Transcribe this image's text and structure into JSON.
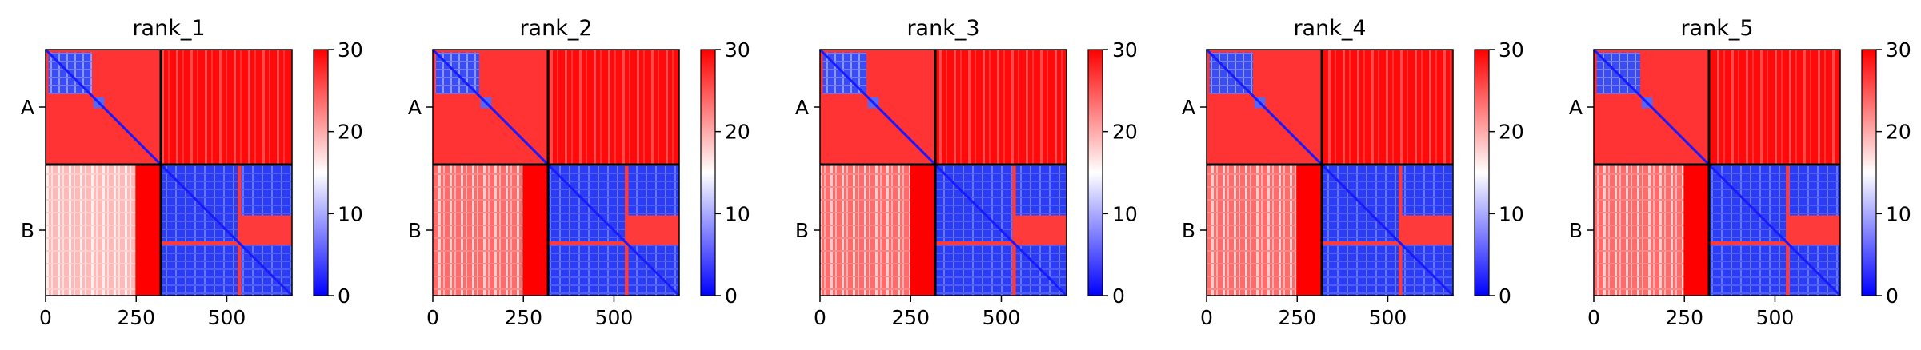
{
  "chart_data": {
    "type": "heatmap",
    "colormap": "bwr",
    "value_range": [
      0,
      30
    ],
    "colorbar_ticks": [
      0,
      10,
      20,
      30
    ],
    "chain_boundary": 318,
    "matrix_size": 680,
    "chains": [
      "A",
      "B"
    ],
    "xticks": [
      0,
      250,
      500
    ],
    "blocks": [
      {
        "id": "A-A",
        "min": 0,
        "max": 30,
        "mean": 27
      },
      {
        "id": "A-B",
        "min": 18,
        "max": 30,
        "mean": 29
      },
      {
        "id": "B-A",
        "min": 14,
        "max": 30,
        "mean": 26
      },
      {
        "id": "B-B",
        "min": 0,
        "max": 30,
        "mean": 8
      }
    ],
    "panels": [
      {
        "title": "rank_1"
      },
      {
        "title": "rank_2"
      },
      {
        "title": "rank_3"
      },
      {
        "title": "rank_4"
      },
      {
        "title": "rank_5"
      }
    ]
  }
}
